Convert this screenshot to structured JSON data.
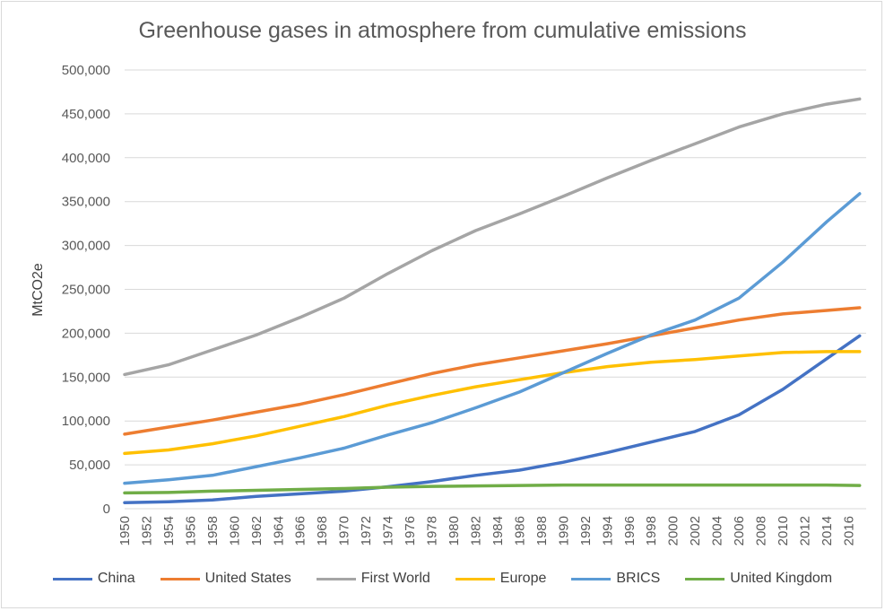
{
  "chart_data": {
    "type": "line",
    "title": "Greenhouse gases in atmosphere from cumulative emissions",
    "xlabel": "",
    "ylabel": "MtCO2e",
    "ylim": [
      0,
      500000
    ],
    "yticks": [
      "0",
      "50,000",
      "100,000",
      "150,000",
      "200,000",
      "250,000",
      "300,000",
      "350,000",
      "400,000",
      "450,000",
      "500,000"
    ],
    "xticks": [
      "1950",
      "1952",
      "1954",
      "1956",
      "1958",
      "1960",
      "1962",
      "1964",
      "1966",
      "1968",
      "1970",
      "1972",
      "1974",
      "1976",
      "1978",
      "1980",
      "1982",
      "1984",
      "1986",
      "1988",
      "1990",
      "1992",
      "1994",
      "1996",
      "1998",
      "2000",
      "2002",
      "2004",
      "2006",
      "2008",
      "2010",
      "2012",
      "2014",
      "2016"
    ],
    "grid": "horizontal",
    "legend_position": "bottom",
    "x": [
      1950,
      1954,
      1958,
      1962,
      1966,
      1970,
      1974,
      1978,
      1982,
      1986,
      1990,
      1994,
      1998,
      2002,
      2006,
      2010,
      2014,
      2017
    ],
    "series": [
      {
        "name": "China",
        "color": "#4472c4",
        "values": [
          7000,
          8000,
          10000,
          14000,
          17000,
          20000,
          25000,
          31000,
          38000,
          44000,
          53000,
          64000,
          76000,
          88000,
          107000,
          136000,
          171000,
          197000
        ]
      },
      {
        "name": "United States",
        "color": "#ed7d31",
        "values": [
          85000,
          93000,
          101000,
          110000,
          119000,
          130000,
          142000,
          154000,
          164000,
          172000,
          180000,
          188000,
          197000,
          206000,
          215000,
          222000,
          226000,
          229000
        ]
      },
      {
        "name": "First World",
        "color": "#a5a5a5",
        "values": [
          153000,
          164000,
          181000,
          198000,
          218000,
          240000,
          268000,
          294000,
          317000,
          336000,
          356000,
          377000,
          397000,
          416000,
          435000,
          450000,
          461000,
          467000
        ]
      },
      {
        "name": "Europe",
        "color": "#ffc000",
        "values": [
          63000,
          67000,
          74000,
          83000,
          94000,
          105000,
          118000,
          129000,
          139000,
          147000,
          155000,
          162000,
          167000,
          170000,
          174000,
          178000,
          179000,
          179000
        ]
      },
      {
        "name": "BRICS",
        "color": "#5b9bd5",
        "values": [
          29000,
          33000,
          38000,
          48000,
          58000,
          69000,
          84000,
          98000,
          115000,
          133000,
          155000,
          177000,
          198000,
          215000,
          240000,
          281000,
          327000,
          359000
        ]
      },
      {
        "name": "United Kingdom",
        "color": "#70ad47",
        "values": [
          18000,
          18500,
          20000,
          21000,
          22000,
          23000,
          24500,
          25500,
          26000,
          26500,
          27000,
          27000,
          27000,
          27000,
          27000,
          27000,
          27000,
          26500
        ]
      }
    ]
  }
}
